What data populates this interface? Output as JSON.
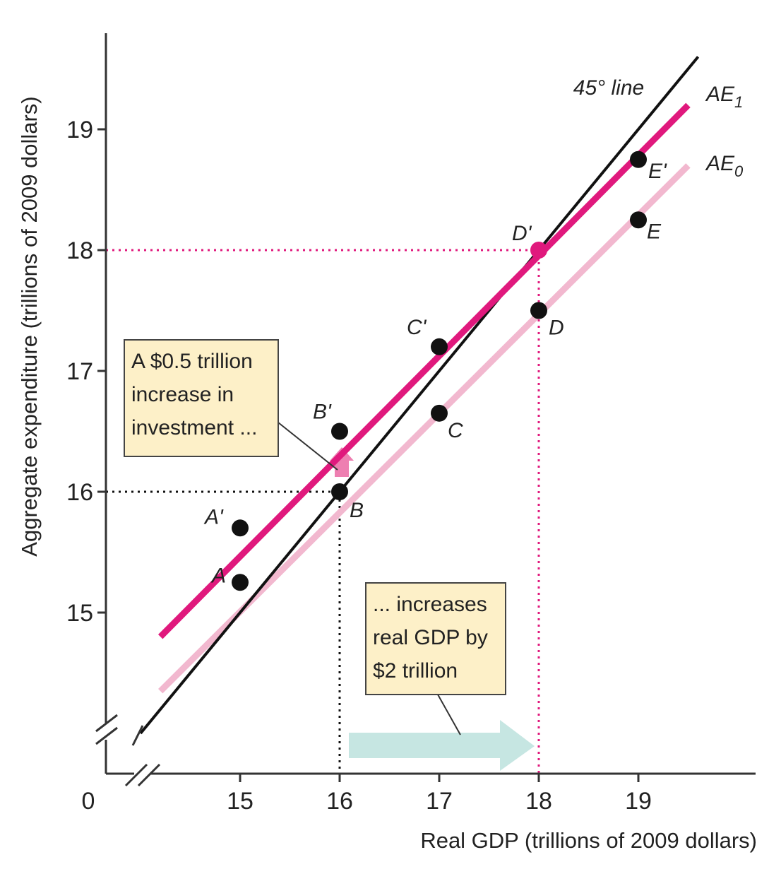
{
  "chart_data": {
    "type": "line",
    "xlabel": "Real GDP (trillions of 2009 dollars)",
    "ylabel": "Aggregate expenditure (trillions of 2009 dollars)",
    "origin_label": "0",
    "x_ticks": [
      "15",
      "16",
      "17",
      "18",
      "19"
    ],
    "y_ticks": [
      "15",
      "16",
      "17",
      "18",
      "19"
    ],
    "highlight_tick": "18",
    "xlim": [
      14,
      19.6
    ],
    "ylim": [
      14,
      19.6
    ],
    "axis_break": true,
    "series": [
      {
        "name": "45° line",
        "key": "line45",
        "x": [
          14,
          19.6
        ],
        "y": [
          14,
          19.6
        ]
      },
      {
        "name": "AE1",
        "key": "ae1",
        "x": [
          14.2,
          19.5
        ],
        "y": [
          14.8,
          19.2
        ]
      },
      {
        "name": "AE0",
        "key": "ae0",
        "x": [
          14.2,
          19.5
        ],
        "y": [
          14.35,
          18.7
        ]
      }
    ],
    "series_labels": {
      "line45": "45° line",
      "ae1": {
        "base": "AE",
        "sub": "1"
      },
      "ae0": {
        "base": "AE",
        "sub": "0"
      }
    },
    "points": [
      {
        "label": "A",
        "x": 15,
        "y": 15.25,
        "series": "AE0"
      },
      {
        "label": "B",
        "x": 16,
        "y": 16.0,
        "series": "AE0"
      },
      {
        "label": "C",
        "x": 17,
        "y": 16.65,
        "series": "AE0"
      },
      {
        "label": "D",
        "x": 18,
        "y": 17.5,
        "series": "AE0"
      },
      {
        "label": "E",
        "x": 19,
        "y": 18.25,
        "series": "AE0"
      },
      {
        "label": "A'",
        "x": 15,
        "y": 15.7,
        "series": "AE1"
      },
      {
        "label": "B'",
        "x": 16,
        "y": 16.5,
        "series": "AE1"
      },
      {
        "label": "C'",
        "x": 17,
        "y": 17.2,
        "series": "AE1"
      },
      {
        "label": "D'",
        "x": 18,
        "y": 18.0,
        "series": "AE1"
      },
      {
        "label": "E'",
        "x": 19,
        "y": 18.75,
        "series": "AE1"
      }
    ],
    "equilibria": [
      {
        "x": 16,
        "y": 16,
        "color": "#111111"
      },
      {
        "x": 18,
        "y": 18,
        "color": "#e0197d"
      }
    ],
    "annotations": [
      {
        "key": "invest",
        "lines": [
          "A $0.5 trillion",
          "increase in",
          "investment ..."
        ]
      },
      {
        "key": "gdp",
        "lines": [
          "... increases",
          "real GDP by",
          "$2 trillion"
        ]
      }
    ],
    "colors": {
      "ae1": "#e0197d",
      "ae0": "#f2b8cf",
      "line45": "#111111",
      "highlight": "#e0197d",
      "callout_bg": "#fdf0c8",
      "callout_border": "#444444",
      "gdp_arrow": "#c6e6e2",
      "invest_arrow": "#ee7fb1",
      "point": "#111111"
    }
  }
}
